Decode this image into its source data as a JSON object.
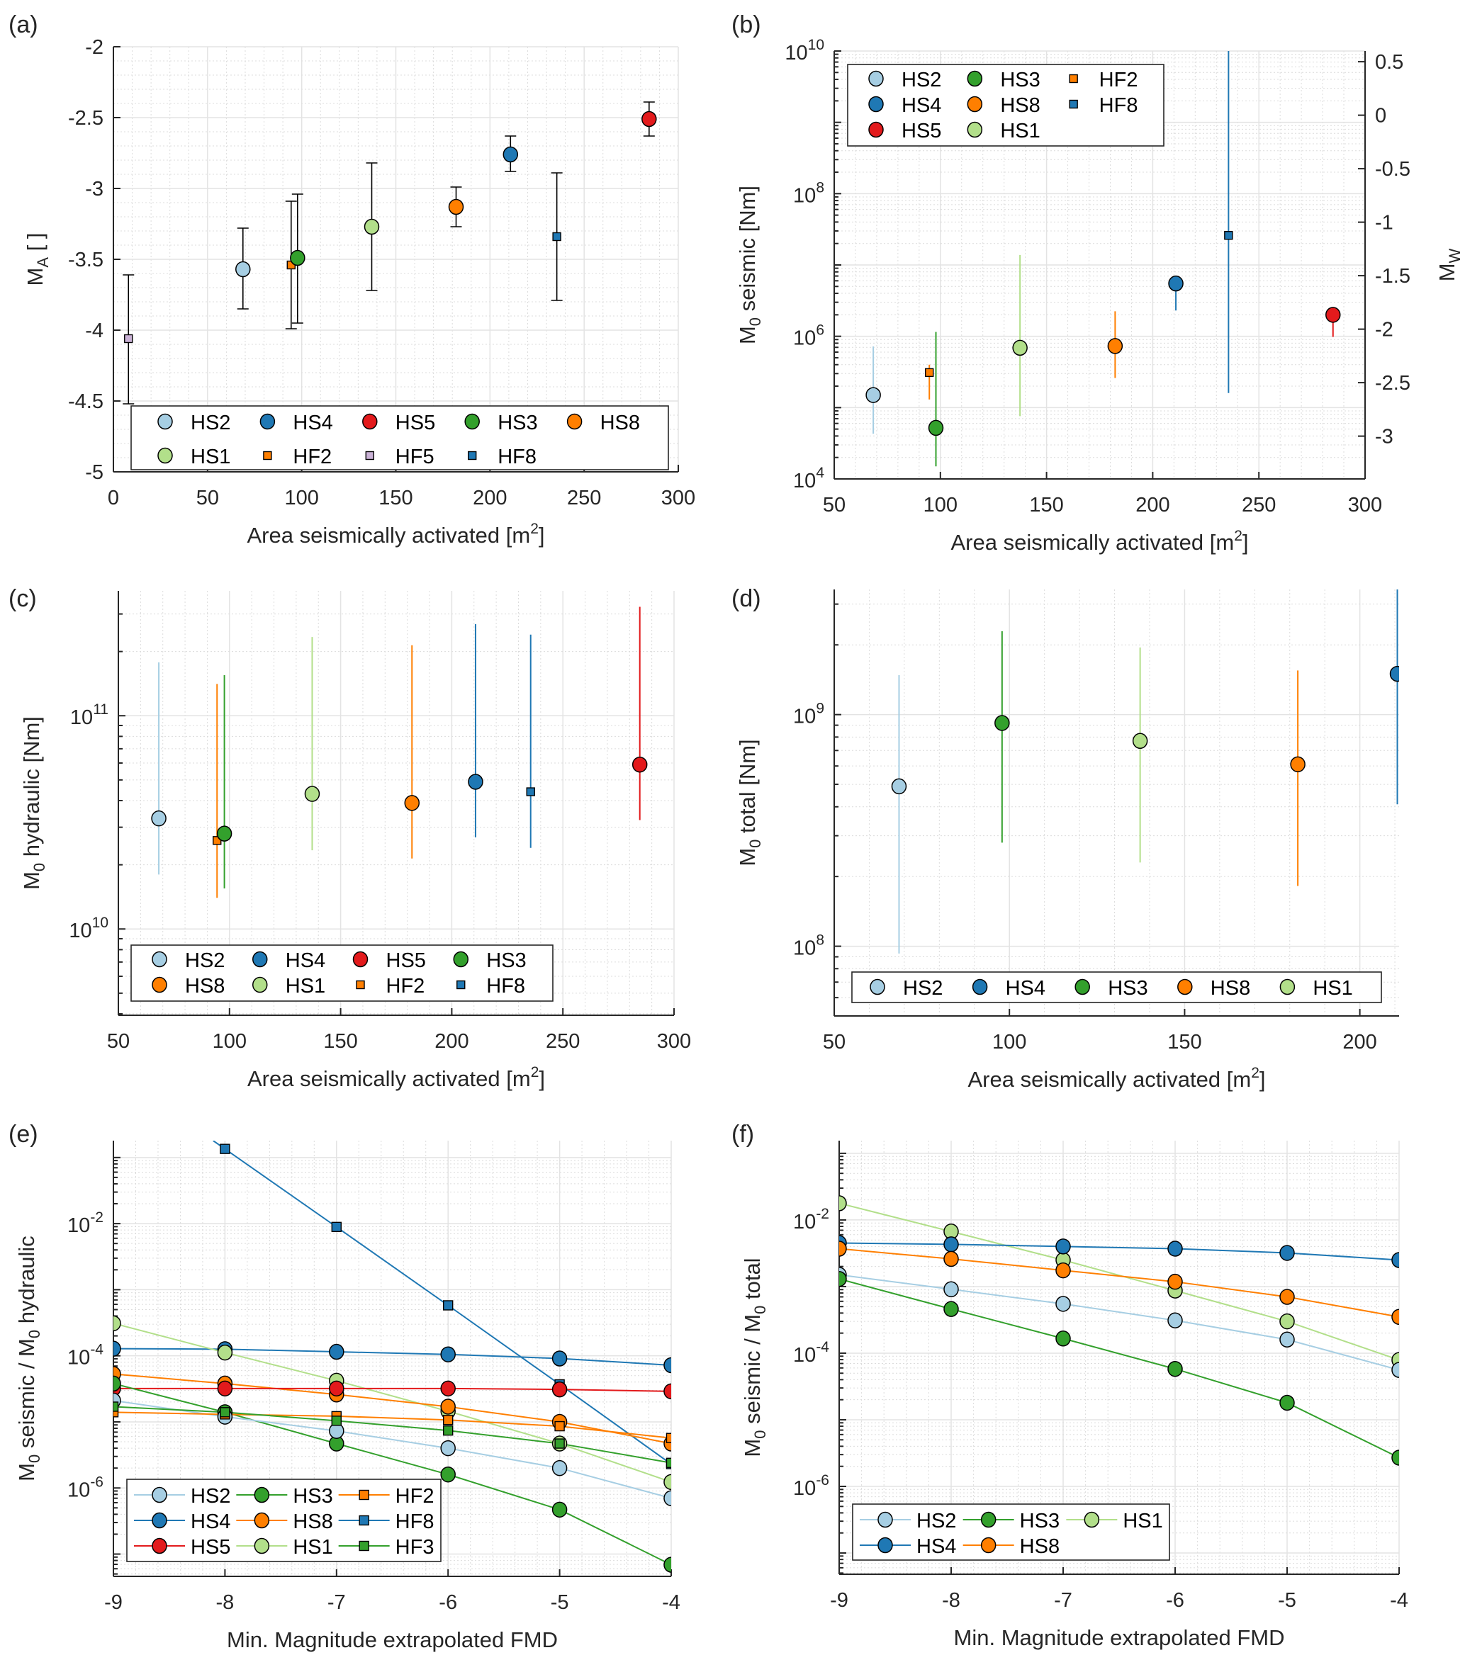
{
  "figure": {
    "panels": [
      "(a)",
      "(b)",
      "(c)",
      "(d)",
      "(e)",
      "(f)"
    ]
  },
  "series_colors": {
    "HS2": "#a6cee3",
    "HS4": "#1f78b4",
    "HS5": "#e31a1c",
    "HS3": "#33a02c",
    "HS8": "#ff7f00",
    "HS1": "#b2df8a",
    "HF2": "#ff7f00",
    "HF5": "#cab2d6",
    "HF8": "#1f78b4",
    "HF3": "#33a02c"
  },
  "chart_data": [
    {
      "id": "a",
      "panel_label": "(a)",
      "type": "scatter",
      "title": "",
      "xlabel": "Area seismically activated [m²]",
      "ylabel": "M_A [ ]",
      "xlim": [
        0,
        300
      ],
      "ylim": [
        -5,
        -2
      ],
      "yscale": "linear",
      "xticks": [
        0,
        50,
        100,
        150,
        200,
        250,
        300
      ],
      "yticks": [
        -5,
        -4.5,
        -4,
        -3.5,
        -3,
        -2.5,
        -2
      ],
      "ytick_labels": [
        "-5",
        "-4.5",
        "-4",
        "-3.5",
        "-3",
        "-2.5",
        "-2"
      ],
      "grid": true,
      "errorbar_color": "black",
      "legend": {
        "placement": "bottom",
        "columns": 5,
        "entries": [
          "HS2",
          "HS4",
          "HS5",
          "HS3",
          "HS8",
          "HS1",
          "HF2",
          "HF5",
          "HF8"
        ]
      },
      "series": [
        {
          "name": "HF5",
          "marker": "square",
          "x": 8,
          "y": -4.06,
          "err_low": -4.52,
          "err_high": -3.61
        },
        {
          "name": "HS2",
          "marker": "circle",
          "x": 68.8,
          "y": -3.57,
          "err_low": -3.85,
          "err_high": -3.28
        },
        {
          "name": "HF2",
          "marker": "square",
          "x": 94.4,
          "y": -3.54,
          "err_low": -3.99,
          "err_high": -3.09
        },
        {
          "name": "HS3",
          "marker": "circle",
          "x": 97.8,
          "y": -3.49,
          "err_low": -3.95,
          "err_high": -3.04
        },
        {
          "name": "HS1",
          "marker": "circle",
          "x": 137.2,
          "y": -3.27,
          "err_low": -3.72,
          "err_high": -2.82
        },
        {
          "name": "HS8",
          "marker": "circle",
          "x": 182,
          "y": -3.13,
          "err_low": -3.27,
          "err_high": -2.99
        },
        {
          "name": "HS4",
          "marker": "circle",
          "x": 210.9,
          "y": -2.76,
          "err_low": -2.88,
          "err_high": -2.63
        },
        {
          "name": "HF8",
          "marker": "square",
          "x": 235.5,
          "y": -3.34,
          "err_low": -3.79,
          "err_high": -2.89
        },
        {
          "name": "HS5",
          "marker": "circle",
          "x": 284.5,
          "y": -2.51,
          "err_low": -2.63,
          "err_high": -2.39
        }
      ]
    },
    {
      "id": "b",
      "panel_label": "(b)",
      "type": "scatter",
      "title": "",
      "xlabel": "Area seismically activated [m²]",
      "ylabel": "M_0 seismic [Nm]",
      "ylabel_right": "M_W",
      "xlim": [
        50,
        300
      ],
      "ylim": [
        10000,
        10000000000
      ],
      "yscale": "log",
      "xticks": [
        50,
        100,
        150,
        200,
        250,
        300
      ],
      "yticks_exp": [
        4,
        6,
        8,
        10
      ],
      "right_axis": {
        "ylim": [
          -3.4,
          0.6
        ],
        "ticks": [
          -3,
          -2.5,
          -2,
          -1.5,
          -1,
          -0.5,
          0,
          0.5
        ],
        "tick_labels": [
          "-3",
          "-2.5",
          "-2",
          "-1.5",
          "-1",
          "-0.5",
          "0",
          "0.5"
        ]
      },
      "grid": true,
      "errorbar_color": "series",
      "legend": {
        "placement": "top-left",
        "columns": 3,
        "column_major": true,
        "rows": 3,
        "entries": [
          "HS2",
          "HS4",
          "HS5",
          "HS3",
          "HS8",
          "HS1",
          "HF2",
          "HF8"
        ]
      },
      "series": [
        {
          "name": "HS2",
          "marker": "circle",
          "x": 68.4,
          "y": 150000,
          "err_low": 43000,
          "err_high": 720000
        },
        {
          "name": "HF2",
          "marker": "square",
          "x": 94.8,
          "y": 310000,
          "err_low": 130000,
          "err_high": 400000
        },
        {
          "name": "HS3",
          "marker": "circle",
          "x": 97.9,
          "y": 52000,
          "err_low": 15000,
          "err_high": 1150000
        },
        {
          "name": "HS1",
          "marker": "circle",
          "x": 137.5,
          "y": 690000,
          "err_low": 76000,
          "err_high": 13800000
        },
        {
          "name": "HS8",
          "marker": "circle",
          "x": 182.3,
          "y": 730000,
          "err_low": 260000,
          "err_high": 2240000
        },
        {
          "name": "HS4",
          "marker": "circle",
          "x": 210.9,
          "y": 5500000,
          "err_low": 2300000,
          "err_high": 5500000
        },
        {
          "name": "HF8",
          "marker": "square",
          "x": 235.7,
          "y": 26000000,
          "err_low": 160000,
          "err_high": 10000000000
        },
        {
          "name": "HS5",
          "marker": "circle",
          "x": 284.9,
          "y": 2000000,
          "err_low": 980000,
          "err_high": 2000000
        }
      ]
    },
    {
      "id": "c",
      "panel_label": "(c)",
      "type": "scatter",
      "title": "",
      "xlabel": "Area seismically activated [m²]",
      "ylabel": "M_0 hydraulic [Nm]",
      "xlim": [
        50,
        300
      ],
      "ylim": [
        3940000000,
        385000000000
      ],
      "yscale": "log",
      "xticks": [
        50,
        100,
        150,
        200,
        250,
        300
      ],
      "yticks_exp": [
        10,
        11
      ],
      "grid": true,
      "errorbar_color": "series",
      "legend": {
        "placement": "bottom-left",
        "columns": 4,
        "entries": [
          "HS2",
          "HS4",
          "HS5",
          "HS3",
          "HS8",
          "HS1",
          "HF2",
          "HF8"
        ]
      },
      "series": [
        {
          "name": "HS2",
          "marker": "circle",
          "x": 68.2,
          "y": 33000000000,
          "err_low": 18000000000,
          "err_high": 178000000000
        },
        {
          "name": "HF2",
          "marker": "square",
          "x": 94.4,
          "y": 26000000000,
          "err_low": 14000000000,
          "err_high": 141000000000
        },
        {
          "name": "HS3",
          "marker": "circle",
          "x": 97.7,
          "y": 28000000000,
          "err_low": 15500000000,
          "err_high": 155000000000
        },
        {
          "name": "HS1",
          "marker": "circle",
          "x": 137.2,
          "y": 43000000000,
          "err_low": 23400000000,
          "err_high": 234000000000
        },
        {
          "name": "HS8",
          "marker": "circle",
          "x": 182.1,
          "y": 39000000000,
          "err_low": 21400000000,
          "err_high": 214000000000
        },
        {
          "name": "HS4",
          "marker": "circle",
          "x": 210.7,
          "y": 49000000000,
          "err_low": 26900000000,
          "err_high": 269000000000
        },
        {
          "name": "HF8",
          "marker": "square",
          "x": 235.5,
          "y": 44000000000,
          "err_low": 24000000000,
          "err_high": 240000000000
        },
        {
          "name": "HS5",
          "marker": "circle",
          "x": 284.6,
          "y": 59000000000,
          "err_low": 32400000000,
          "err_high": 324000000000
        }
      ]
    },
    {
      "id": "d",
      "panel_label": "(d)",
      "type": "scatter",
      "title": "",
      "xlabel": "Area seismically activated [m²]",
      "ylabel": "M_0 total [Nm]",
      "xlim": [
        50,
        211.2
      ],
      "ylim": [
        50000000,
        3470000000
      ],
      "yscale": "log",
      "xticks": [
        50,
        100,
        150,
        200
      ],
      "yticks_exp": [
        8,
        9
      ],
      "grid": true,
      "errorbar_color": "series",
      "legend": {
        "placement": "bottom",
        "columns": 5,
        "entries": [
          "HS2",
          "HS4",
          "HS3",
          "HS8",
          "HS1"
        ]
      },
      "series": [
        {
          "name": "HS2",
          "marker": "circle",
          "x": 68.5,
          "y": 490000000,
          "err_low": 93000000,
          "err_high": 1480000000
        },
        {
          "name": "HS3",
          "marker": "circle",
          "x": 97.9,
          "y": 920000000,
          "err_low": 280000000,
          "err_high": 2290000000
        },
        {
          "name": "HS1",
          "marker": "circle",
          "x": 137.3,
          "y": 770000000,
          "err_low": 230000000,
          "err_high": 1950000000
        },
        {
          "name": "HS8",
          "marker": "circle",
          "x": 182.3,
          "y": 610000000,
          "err_low": 182000000,
          "err_high": 1550000000
        },
        {
          "name": "HS4",
          "marker": "circle",
          "x": 210.7,
          "y": 1500000000,
          "err_low": 410000000,
          "err_high": 3470000000
        }
      ]
    },
    {
      "id": "e",
      "panel_label": "(e)",
      "type": "line",
      "title": "",
      "xlabel": "Min. Magnitude extrapolated FMD",
      "ylabel": "M_0 seismic / M_0 hydraulic",
      "xlim": [
        -9,
        -4
      ],
      "ylim": [
        4.6e-08,
        0.18
      ],
      "yscale": "log",
      "xticks": [
        -9,
        -8,
        -7,
        -6,
        -5,
        -4
      ],
      "yticks_exp": [
        -6,
        -4,
        -2
      ],
      "grid": true,
      "x": [
        -9,
        -8,
        -7,
        -6,
        -5,
        -4
      ],
      "legend": {
        "placement": "bottom-left",
        "columns": 3,
        "column_major": true,
        "rows": 3,
        "entries": [
          "HS2",
          "HS4",
          "HS5",
          "HS3",
          "HS8",
          "HS1",
          "HF2",
          "HF8",
          "HF3"
        ]
      },
      "series": [
        {
          "name": "HF8",
          "marker": "square",
          "values": [
            null,
            0.135,
            0.0089,
            0.00058,
            3.7e-05,
            2.3e-06
          ],
          "line_from": 0.18
        },
        {
          "name": "HS4",
          "marker": "circle",
          "values": [
            0.000128,
            0.000126,
            0.000115,
            0.000105,
            9.1e-05,
            7.2e-05
          ]
        },
        {
          "name": "HS1",
          "marker": "circle",
          "values": [
            0.00031,
            0.000112,
            4.2e-05,
            1.45e-05,
            4.7e-06,
            1.23e-06
          ]
        },
        {
          "name": "HS8",
          "marker": "circle",
          "values": [
            5.3e-05,
            3.8e-05,
            2.6e-05,
            1.7e-05,
            1e-05,
            4.7e-06
          ]
        },
        {
          "name": "HS5",
          "marker": "circle",
          "values": [
            3.2e-05,
            3.2e-05,
            3.2e-05,
            3.2e-05,
            3.1e-05,
            2.9e-05
          ]
        },
        {
          "name": "HS3",
          "marker": "circle",
          "values": [
            3.8e-05,
            1.4e-05,
            4.7e-06,
            1.6e-06,
            4.7e-07,
            6.9e-08
          ]
        },
        {
          "name": "HS2",
          "marker": "circle",
          "values": [
            2.1e-05,
            1.2e-05,
            7.3e-06,
            4e-06,
            2e-06,
            7e-07
          ]
        },
        {
          "name": "HF2",
          "marker": "square",
          "values": [
            1.4e-05,
            1.3e-05,
            1.22e-05,
            1.07e-05,
            8.6e-06,
            5.7e-06
          ]
        },
        {
          "name": "HF3",
          "marker": "square",
          "values": [
            1.7e-05,
            1.4e-05,
            1.04e-05,
            7.4e-06,
            4.7e-06,
            2.4e-06
          ]
        }
      ]
    },
    {
      "id": "f",
      "panel_label": "(f)",
      "type": "line",
      "title": "",
      "xlabel": "Min. Magnitude extrapolated FMD",
      "ylabel": "M_0 seismic / M_0 total",
      "xlim": [
        -9,
        -4
      ],
      "ylim": [
        4.8e-08,
        0.155
      ],
      "yscale": "log",
      "xticks": [
        -9,
        -8,
        -7,
        -6,
        -5,
        -4
      ],
      "yticks_exp": [
        -6,
        -4,
        -2
      ],
      "grid": true,
      "x": [
        -9,
        -8,
        -7,
        -6,
        -5,
        -4
      ],
      "legend": {
        "placement": "bottom-left",
        "columns": 3,
        "column_major": true,
        "rows": 2,
        "entries": [
          "HS2",
          "HS4",
          "HS3",
          "HS8",
          "HS1"
        ]
      },
      "series": [
        {
          "name": "HS1",
          "marker": "circle",
          "values": [
            0.0178,
            0.0067,
            0.0025,
            0.00087,
            0.0003,
            7.9e-05
          ]
        },
        {
          "name": "HS4",
          "marker": "circle",
          "values": [
            0.0045,
            0.0043,
            0.004,
            0.0037,
            0.0032,
            0.0025
          ]
        },
        {
          "name": "HS8",
          "marker": "circle",
          "values": [
            0.0037,
            0.0026,
            0.00175,
            0.00118,
            0.0007,
            0.00035
          ]
        },
        {
          "name": "HS2",
          "marker": "circle",
          "values": [
            0.0015,
            0.00091,
            0.00055,
            0.00031,
            0.00016,
            5.6e-05
          ]
        },
        {
          "name": "HS3",
          "marker": "circle",
          "values": [
            0.0013,
            0.00046,
            0.000166,
            5.8e-05,
            1.8e-05,
            2.7e-06
          ]
        }
      ]
    }
  ]
}
